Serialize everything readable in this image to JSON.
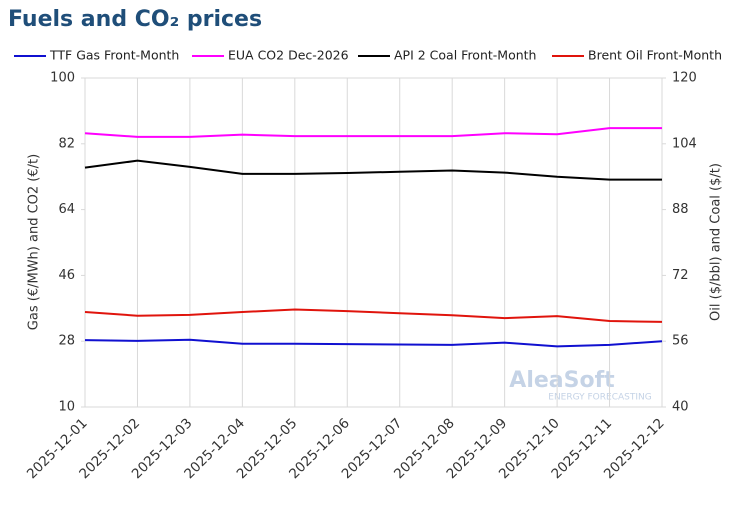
{
  "chart_data": {
    "type": "line",
    "title": "Fuels and CO₂ prices",
    "y_label": "Gas (€/MWh) and CO2 (€/t)",
    "y2_label": "Oil ($/bbl) and Coal ($/t)",
    "watermark": "AleaSoft",
    "watermark_sub": "ENERGY FORECASTING",
    "x": [
      "2025-12-01",
      "2025-12-02",
      "2025-12-03",
      "2025-12-04",
      "2025-12-05",
      "2025-12-06",
      "2025-12-07",
      "2025-12-08",
      "2025-12-09",
      "2025-12-10",
      "2025-12-11",
      "2025-12-12"
    ],
    "ylim": [
      10,
      100
    ],
    "yticks": [
      10,
      28,
      46,
      64,
      82,
      100
    ],
    "y2lim": [
      40,
      120
    ],
    "y2ticks": [
      40,
      56,
      72,
      88,
      104,
      120
    ],
    "grid": "x",
    "series": [
      {
        "name": "TTF Gas Front-Month",
        "color": "#1010d0",
        "values": [
          28.3,
          28.1,
          28.4,
          27.3,
          27.3,
          27.2,
          27.1,
          27.0,
          27.6,
          26.6,
          27.0,
          28.0
        ]
      },
      {
        "name": "EUA CO2 Dec-2026",
        "color": "#ff00ff",
        "values": [
          84.9,
          83.9,
          83.9,
          84.5,
          84.1,
          84.1,
          84.1,
          84.1,
          84.9,
          84.6,
          86.3,
          86.3
        ]
      },
      {
        "name": "API 2 Coal Front-Month",
        "color": "#000000",
        "axis": "y2",
        "values": [
          98.2,
          99.9,
          98.4,
          96.7,
          96.7,
          96.9,
          97.2,
          97.5,
          97.0,
          96.0,
          95.3,
          95.3
        ]
      },
      {
        "name": "Brent Oil Front-Month",
        "color": "#e0140c",
        "axis": "y2",
        "values": [
          63.1,
          62.2,
          62.4,
          63.1,
          63.7,
          63.3,
          62.8,
          62.3,
          61.6,
          62.1,
          60.9,
          60.7
        ]
      }
    ]
  }
}
